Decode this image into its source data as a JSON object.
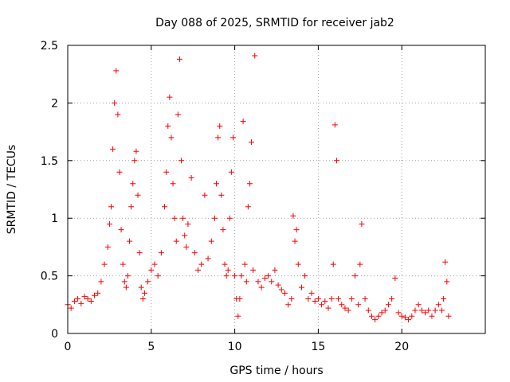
{
  "chart_data": {
    "type": "scatter",
    "title": "Day 088 of 2025, SRMTID for receiver jab2",
    "xlabel": "GPS time / hours",
    "ylabel": "SRMTID / TECUs",
    "xlim": [
      0,
      25
    ],
    "ylim": [
      0,
      2.5
    ],
    "xticks": [
      0,
      5,
      10,
      15,
      20
    ],
    "xtick_labels": [
      "0",
      "5",
      "10",
      "15",
      "20"
    ],
    "yticks": [
      0,
      0.5,
      1,
      1.5,
      2,
      2.5
    ],
    "ytick_labels": [
      "0",
      "0.5",
      "1",
      "1.5",
      "2",
      "2.5"
    ],
    "grid": true,
    "marker": "plus",
    "series": [
      {
        "name": "SRMTID",
        "color": "#ff0000",
        "x": [
          0.0,
          0.2,
          0.4,
          0.6,
          0.8,
          1.0,
          1.2,
          1.4,
          1.6,
          1.8,
          2.0,
          2.2,
          2.4,
          2.5,
          2.6,
          2.7,
          2.8,
          2.9,
          3.0,
          3.1,
          3.2,
          3.3,
          3.4,
          3.5,
          3.6,
          3.7,
          3.8,
          3.9,
          4.0,
          4.1,
          4.2,
          4.3,
          4.4,
          4.5,
          4.6,
          4.8,
          5.0,
          5.2,
          5.4,
          5.6,
          5.8,
          5.9,
          6.0,
          6.1,
          6.2,
          6.3,
          6.4,
          6.5,
          6.6,
          6.7,
          6.8,
          6.9,
          7.0,
          7.1,
          7.2,
          7.4,
          7.6,
          7.8,
          8.0,
          8.2,
          8.4,
          8.6,
          8.8,
          8.9,
          9.0,
          9.1,
          9.2,
          9.3,
          9.4,
          9.5,
          9.6,
          9.7,
          9.8,
          9.9,
          10.0,
          10.1,
          10.2,
          10.3,
          10.4,
          10.5,
          10.6,
          10.7,
          10.8,
          10.9,
          11.0,
          11.1,
          11.2,
          11.4,
          11.6,
          11.8,
          12.0,
          12.2,
          12.4,
          12.6,
          12.8,
          13.0,
          13.2,
          13.4,
          13.5,
          13.6,
          13.7,
          13.8,
          14.0,
          14.2,
          14.4,
          14.6,
          14.8,
          15.0,
          15.2,
          15.4,
          15.6,
          15.8,
          15.9,
          16.0,
          16.1,
          16.2,
          16.4,
          16.6,
          16.8,
          17.0,
          17.2,
          17.4,
          17.5,
          17.6,
          17.8,
          18.0,
          18.2,
          18.4,
          18.6,
          18.8,
          19.0,
          19.2,
          19.4,
          19.6,
          19.8,
          20.0,
          20.2,
          20.4,
          20.6,
          20.8,
          21.0,
          21.2,
          21.4,
          21.6,
          21.8,
          22.0,
          22.2,
          22.4,
          22.5,
          22.6,
          22.7,
          22.8
        ],
        "y": [
          0.25,
          0.22,
          0.28,
          0.3,
          0.26,
          0.32,
          0.3,
          0.28,
          0.33,
          0.35,
          0.45,
          0.6,
          0.75,
          0.95,
          1.1,
          1.6,
          2.0,
          2.28,
          1.9,
          1.4,
          0.9,
          0.6,
          0.45,
          0.4,
          0.5,
          0.8,
          1.1,
          1.3,
          1.5,
          1.58,
          1.2,
          0.7,
          0.4,
          0.3,
          0.35,
          0.45,
          0.55,
          0.6,
          0.5,
          0.7,
          1.1,
          1.4,
          1.8,
          2.05,
          1.7,
          1.3,
          1.0,
          0.8,
          1.9,
          2.38,
          1.5,
          1.0,
          0.85,
          0.75,
          0.95,
          1.35,
          0.7,
          0.55,
          0.6,
          1.2,
          0.65,
          0.8,
          1.0,
          1.3,
          1.7,
          1.8,
          1.2,
          0.9,
          0.6,
          0.5,
          0.55,
          1.0,
          1.4,
          1.7,
          0.5,
          0.3,
          0.15,
          0.3,
          0.5,
          1.84,
          0.6,
          0.45,
          1.1,
          1.3,
          1.66,
          0.55,
          2.41,
          0.45,
          0.4,
          0.48,
          0.5,
          0.45,
          0.55,
          0.42,
          0.38,
          0.35,
          0.25,
          0.3,
          1.02,
          0.8,
          0.9,
          0.6,
          0.4,
          0.5,
          0.3,
          0.35,
          0.28,
          0.3,
          0.25,
          0.28,
          0.22,
          0.3,
          0.6,
          1.81,
          1.5,
          0.3,
          0.25,
          0.22,
          0.2,
          0.3,
          0.5,
          0.25,
          0.6,
          0.95,
          0.3,
          0.2,
          0.15,
          0.12,
          0.15,
          0.18,
          0.2,
          0.25,
          0.3,
          0.48,
          0.18,
          0.15,
          0.14,
          0.12,
          0.15,
          0.2,
          0.25,
          0.2,
          0.18,
          0.2,
          0.15,
          0.2,
          0.25,
          0.2,
          0.3,
          0.62,
          0.45,
          0.15
        ]
      }
    ]
  }
}
